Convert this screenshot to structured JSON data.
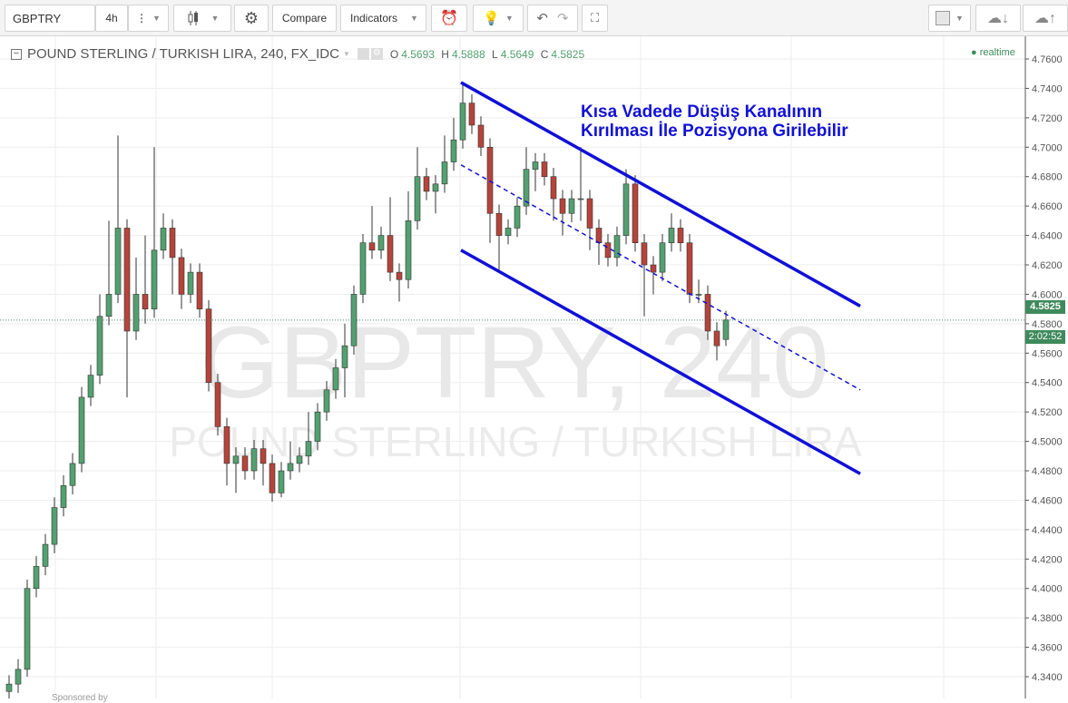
{
  "toolbar": {
    "symbol": "GBPTRY",
    "interval": "4h",
    "compare": "Compare",
    "indicators": "Indicators"
  },
  "icons": {
    "bars": "bar-style-icon",
    "settings": "gear-icon",
    "alert": "alarm-clock-icon",
    "ideas": "lightbulb-icon",
    "undo": "undo-icon",
    "redo": "redo-icon",
    "fullscreen": "fullscreen-icon",
    "layout": "layout-square-icon",
    "load": "cloud-download-icon",
    "save": "cloud-upload-icon"
  },
  "legend": {
    "title": "POUND STERLING / TURKISH LIRA, 240, FX_IDC",
    "o_label": "O",
    "o": "4.5693",
    "h_label": "H",
    "h": "4.5888",
    "l_label": "L",
    "l": "4.5649",
    "c_label": "C",
    "c": "4.5825"
  },
  "status": {
    "realtime": "realtime"
  },
  "annotation": {
    "line1": "Kısa Vadede Düşüş Kanalının",
    "line2": "Kırılması İle Pozisyona Girilebilir"
  },
  "watermark": {
    "line1": "GBPTRY, 240",
    "line2": "POUND STERLING / TURKISH LIRA"
  },
  "price_label": "4.5825",
  "countdown": "2:02:52",
  "sponsored": "Sponsored by",
  "colors": {
    "up": "#53a070",
    "down": "#b5443a",
    "trendline": "#1010d8",
    "annotation": "#1010d8",
    "price_label": "#3f8a5c"
  },
  "chart_data": {
    "type": "candlestick",
    "symbol": "GBPTRY",
    "interval": "240",
    "yticks": [
      "4.3400",
      "4.3600",
      "4.3800",
      "4.4000",
      "4.4200",
      "4.4400",
      "4.4600",
      "4.4800",
      "4.5000",
      "4.5200",
      "4.5400",
      "4.5600",
      "4.5800",
      "4.6000",
      "4.6200",
      "4.6400",
      "4.6600",
      "4.6800",
      "4.7000",
      "4.7200",
      "4.7400",
      "4.7600"
    ],
    "ylim": [
      4.32,
      4.775
    ],
    "grid": true,
    "last_price": 4.5825,
    "candles": [
      [
        4.33,
        4.341,
        4.324,
        4.335
      ],
      [
        4.335,
        4.352,
        4.329,
        4.345
      ],
      [
        4.345,
        4.406,
        4.34,
        4.4
      ],
      [
        4.4,
        4.422,
        4.394,
        4.415
      ],
      [
        4.415,
        4.437,
        4.409,
        4.43
      ],
      [
        4.43,
        4.462,
        4.424,
        4.455
      ],
      [
        4.455,
        4.477,
        4.449,
        4.47
      ],
      [
        4.47,
        4.492,
        4.464,
        4.485
      ],
      [
        4.485,
        4.537,
        4.479,
        4.53
      ],
      [
        4.53,
        4.552,
        4.524,
        4.545
      ],
      [
        4.545,
        4.6,
        4.539,
        4.585
      ],
      [
        4.585,
        4.65,
        4.579,
        4.6
      ],
      [
        4.6,
        4.708,
        4.594,
        4.645
      ],
      [
        4.645,
        4.651,
        4.53,
        4.575
      ],
      [
        4.575,
        4.625,
        4.569,
        4.6
      ],
      [
        4.6,
        4.64,
        4.58,
        4.59
      ],
      [
        4.59,
        4.7,
        4.584,
        4.63
      ],
      [
        4.63,
        4.655,
        4.624,
        4.645
      ],
      [
        4.645,
        4.651,
        4.6,
        4.625
      ],
      [
        4.625,
        4.631,
        4.59,
        4.6
      ],
      [
        4.6,
        4.621,
        4.594,
        4.615
      ],
      [
        4.615,
        4.621,
        4.584,
        4.59
      ],
      [
        4.59,
        4.596,
        4.534,
        4.54
      ],
      [
        4.54,
        4.546,
        4.504,
        4.51
      ],
      [
        4.51,
        4.516,
        4.47,
        4.485
      ],
      [
        4.485,
        4.496,
        4.465,
        4.49
      ],
      [
        4.49,
        4.496,
        4.474,
        4.48
      ],
      [
        4.48,
        4.501,
        4.474,
        4.495
      ],
      [
        4.495,
        4.501,
        4.47,
        4.485
      ],
      [
        4.485,
        4.491,
        4.459,
        4.465
      ],
      [
        4.465,
        4.486,
        4.462,
        4.48
      ],
      [
        4.48,
        4.5,
        4.474,
        4.485
      ],
      [
        4.485,
        4.496,
        4.479,
        4.49
      ],
      [
        4.49,
        4.52,
        4.484,
        4.5
      ],
      [
        4.5,
        4.526,
        4.494,
        4.52
      ],
      [
        4.52,
        4.541,
        4.514,
        4.535
      ],
      [
        4.535,
        4.556,
        4.529,
        4.55
      ],
      [
        4.55,
        4.58,
        4.53,
        4.565
      ],
      [
        4.565,
        4.606,
        4.559,
        4.6
      ],
      [
        4.6,
        4.641,
        4.594,
        4.635
      ],
      [
        4.635,
        4.66,
        4.624,
        4.63
      ],
      [
        4.63,
        4.646,
        4.624,
        4.64
      ],
      [
        4.64,
        4.666,
        4.609,
        4.615
      ],
      [
        4.615,
        4.621,
        4.595,
        4.61
      ],
      [
        4.61,
        4.67,
        4.604,
        4.65
      ],
      [
        4.65,
        4.7,
        4.644,
        4.68
      ],
      [
        4.68,
        4.686,
        4.664,
        4.67
      ],
      [
        4.67,
        4.681,
        4.655,
        4.675
      ],
      [
        4.675,
        4.708,
        4.669,
        4.69
      ],
      [
        4.69,
        4.72,
        4.684,
        4.705
      ],
      [
        4.705,
        4.744,
        4.699,
        4.73
      ],
      [
        4.73,
        4.736,
        4.709,
        4.715
      ],
      [
        4.715,
        4.721,
        4.694,
        4.7
      ],
      [
        4.7,
        4.706,
        4.635,
        4.655
      ],
      [
        4.655,
        4.661,
        4.615,
        4.64
      ],
      [
        4.64,
        4.651,
        4.634,
        4.645
      ],
      [
        4.645,
        4.666,
        4.639,
        4.66
      ],
      [
        4.66,
        4.7,
        4.654,
        4.685
      ],
      [
        4.685,
        4.696,
        4.67,
        4.69
      ],
      [
        4.69,
        4.696,
        4.674,
        4.68
      ],
      [
        4.68,
        4.686,
        4.65,
        4.665
      ],
      [
        4.665,
        4.671,
        4.64,
        4.655
      ],
      [
        4.655,
        4.671,
        4.649,
        4.665
      ],
      [
        4.665,
        4.7,
        4.65,
        4.665
      ],
      [
        4.665,
        4.671,
        4.63,
        4.645
      ],
      [
        4.645,
        4.651,
        4.62,
        4.635
      ],
      [
        4.635,
        4.641,
        4.619,
        4.625
      ],
      [
        4.625,
        4.646,
        4.619,
        4.64
      ],
      [
        4.64,
        4.685,
        4.634,
        4.675
      ],
      [
        4.675,
        4.681,
        4.629,
        4.635
      ],
      [
        4.635,
        4.641,
        4.585,
        4.62
      ],
      [
        4.62,
        4.626,
        4.6,
        4.615
      ],
      [
        4.615,
        4.641,
        4.609,
        4.635
      ],
      [
        4.635,
        4.655,
        4.629,
        4.645
      ],
      [
        4.645,
        4.651,
        4.629,
        4.635
      ],
      [
        4.635,
        4.641,
        4.594,
        4.6
      ],
      [
        4.6,
        4.61,
        4.594,
        4.6
      ],
      [
        4.6,
        4.606,
        4.569,
        4.575
      ],
      [
        4.575,
        4.581,
        4.555,
        4.565
      ],
      [
        4.5693,
        4.5888,
        4.5649,
        4.5825
      ]
    ],
    "trendlines": [
      {
        "style": "solid",
        "from": [
          49.8,
          4.744
        ],
        "to": [
          93.8,
          4.592
        ]
      },
      {
        "style": "dashed",
        "from": [
          49.8,
          4.688
        ],
        "to": [
          93.8,
          4.535
        ]
      },
      {
        "style": "solid",
        "from": [
          49.8,
          4.63
        ],
        "to": [
          93.8,
          4.478
        ]
      }
    ]
  }
}
